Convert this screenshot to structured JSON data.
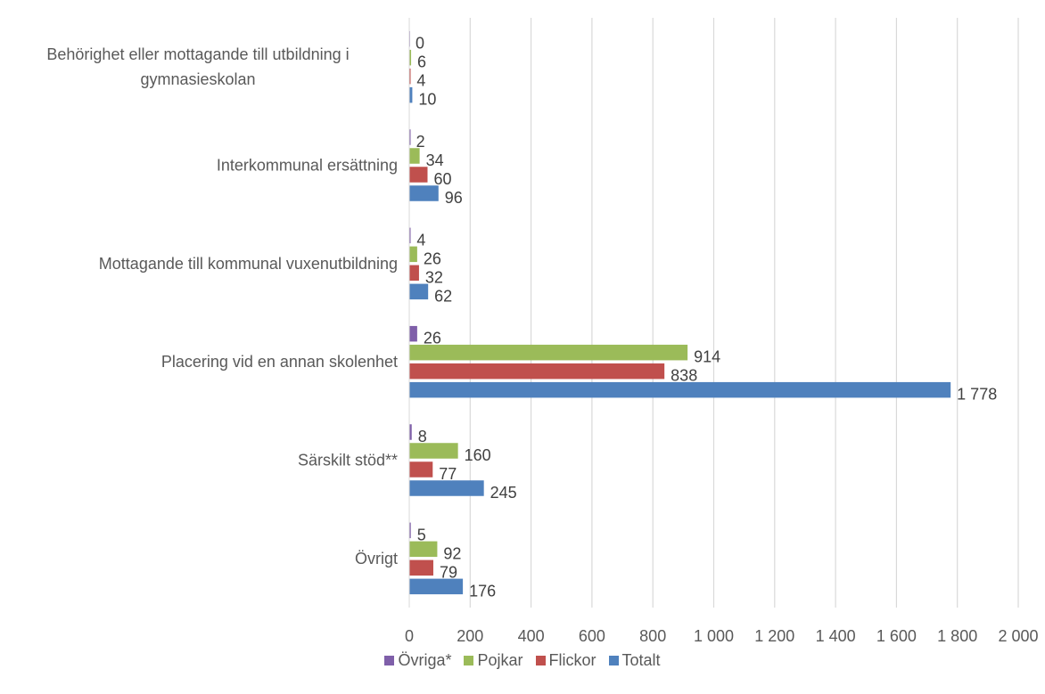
{
  "chart_data": {
    "type": "bar",
    "orientation": "horizontal",
    "categories": [
      "Behörighet eller mottagande till utbildning i gymnasieskolan",
      "Interkommunal ersättning",
      "Mottagande till kommunal vuxenutbildning",
      "Placering vid en annan skolenhet",
      "Särskilt stöd**",
      "Övrigt"
    ],
    "series": [
      {
        "name": "Övriga*",
        "color": "#7f5fa9",
        "values": [
          0,
          2,
          4,
          26,
          8,
          5
        ],
        "labels": [
          "0",
          "2",
          "4",
          "26",
          "8",
          "5"
        ]
      },
      {
        "name": "Pojkar",
        "color": "#9bbb59",
        "values": [
          6,
          34,
          26,
          914,
          160,
          92
        ],
        "labels": [
          "6",
          "34",
          "26",
          "914",
          "160",
          "92"
        ]
      },
      {
        "name": "Flickor",
        "color": "#c0504d",
        "values": [
          4,
          60,
          32,
          838,
          77,
          79
        ],
        "labels": [
          "4",
          "60",
          "32",
          "838",
          "77",
          "79"
        ]
      },
      {
        "name": "Totalt",
        "color": "#4f81bd",
        "values": [
          10,
          96,
          62,
          1778,
          245,
          176
        ],
        "labels": [
          "10",
          "96",
          "62",
          "1 778",
          "245",
          "176"
        ]
      }
    ],
    "xlim": [
      0,
      2000
    ],
    "ticks": [
      0,
      200,
      400,
      600,
      800,
      1000,
      1200,
      1400,
      1600,
      1800,
      2000
    ],
    "tick_labels": [
      "0",
      "200",
      "400",
      "600",
      "800",
      "1 000",
      "1 200",
      "1 400",
      "1 600",
      "1 800",
      "2 000"
    ],
    "grid": true,
    "legend_position": "bottom",
    "legend_order": [
      "Övriga*",
      "Pojkar",
      "Flickor",
      "Totalt"
    ]
  }
}
